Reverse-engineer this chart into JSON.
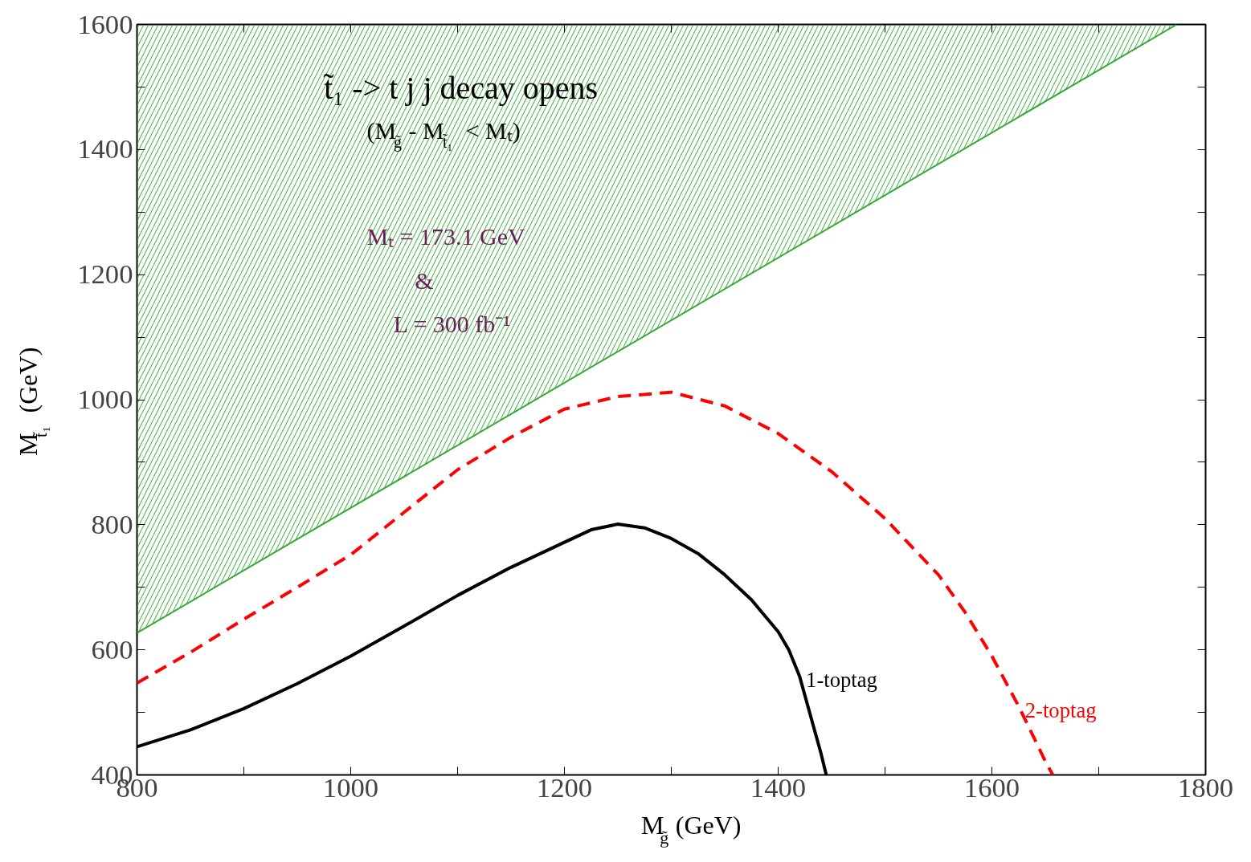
{
  "chart_data": {
    "type": "line",
    "xlabel": "M$_{g̃}$ (GeV)",
    "ylabel": "M$_{t̃₁}$ (GeV)",
    "xlim": [
      800,
      1800
    ],
    "ylim": [
      400,
      1600
    ],
    "xticks": [
      800,
      {
        "value": 900,
        "label": null
      },
      1000,
      {
        "value": 1100,
        "label": null
      },
      1200,
      {
        "value": 1300,
        "label": null
      },
      1400,
      {
        "value": 1500,
        "label": null
      },
      1600,
      {
        "value": 1700,
        "label": null
      },
      1800
    ],
    "yticks": [
      400,
      {
        "value": 500,
        "label": null
      },
      600,
      {
        "value": 700,
        "label": null
      },
      800,
      {
        "value": 900,
        "label": null
      },
      1000,
      {
        "value": 1100,
        "label": null
      },
      1200,
      {
        "value": 1300,
        "label": null
      },
      1400,
      {
        "value": 1500,
        "label": null
      },
      1600
    ],
    "grid": false,
    "legend": false,
    "series": [
      {
        "color": "#33aa33",
        "line_style": "solid",
        "x": [
          800,
          1773
        ],
        "values": [
          627,
          1600
        ],
        "lower": [
          627,
          1600
        ],
        "upper": [
          1600,
          1600
        ]
      },
      {
        "name": "1-toptag",
        "color": "#000000",
        "line_style": "solid",
        "x": [
          800,
          850,
          900,
          950,
          1000,
          1050,
          1100,
          1150,
          1200,
          1225,
          1250,
          1275,
          1300,
          1325,
          1350,
          1375,
          1400,
          1410,
          1420,
          1440,
          1445
        ],
        "values": [
          445,
          472,
          506,
          546,
          590,
          638,
          687,
          732,
          772,
          792,
          801,
          795,
          778,
          754,
          720,
          680,
          629,
          600,
          558,
          435,
          400
        ]
      },
      {
        "name": "2-toptag",
        "color": "#ff0000",
        "line_style": "dashed",
        "x": [
          800,
          850,
          900,
          950,
          1000,
          1050,
          1100,
          1150,
          1200,
          1250,
          1300,
          1350,
          1400,
          1450,
          1500,
          1550,
          1575,
          1600,
          1625,
          1650,
          1657
        ],
        "values": [
          547,
          596,
          649,
          700,
          752,
          820,
          888,
          940,
          985,
          1005,
          1012,
          990,
          946,
          885,
          810,
          720,
          660,
          590,
          510,
          422,
          400
        ]
      }
    ],
    "annotations": [
      "t̃₁ -> t j j decay opens",
      "(M$_{g̃}$ - M$_{t̃₁}$ < Mₜ)",
      "Mₜ = 173.1 GeV",
      "&",
      "L = 300 fb⁻¹"
    ]
  }
}
